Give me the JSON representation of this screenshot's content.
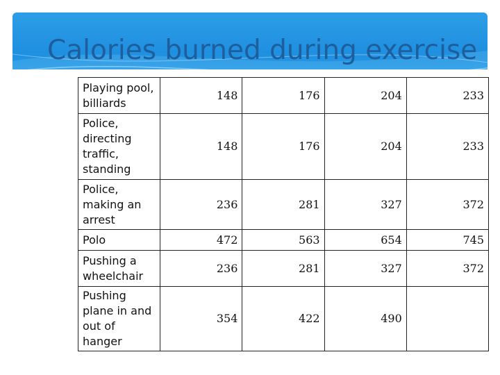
{
  "title": "Calories burned during exercise",
  "table": {
    "rows": [
      {
        "activity": "Playing pool, billiards",
        "values": [
          "148",
          "176",
          "204",
          "233"
        ]
      },
      {
        "activity": "Police, directing traffic, standing",
        "values": [
          "148",
          "176",
          "204",
          "233"
        ]
      },
      {
        "activity": "Police, making an arrest",
        "values": [
          "236",
          "281",
          "327",
          "372"
        ]
      },
      {
        "activity": "Polo",
        "values": [
          "472",
          "563",
          "654",
          "745"
        ]
      },
      {
        "activity": "Pushing a wheelchair",
        "values": [
          "236",
          "281",
          "327",
          "372"
        ]
      },
      {
        "activity": "Pushing plane in and out of hanger",
        "values": [
          "354",
          "422",
          "490",
          ""
        ]
      }
    ]
  },
  "colors": {
    "banner": "#2d9ee6",
    "title_text": "#1f5e9c",
    "border": "#222222"
  }
}
